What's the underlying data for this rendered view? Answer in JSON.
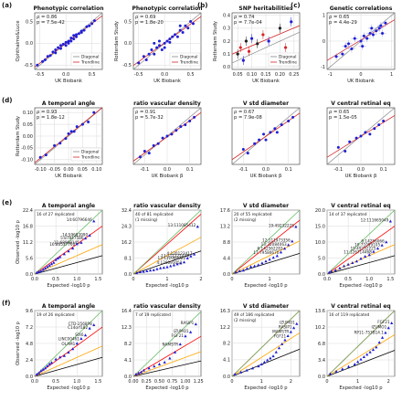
{
  "panels": [
    {
      "id": "a",
      "title": "Phenotypic correlation",
      "ylabel": "Ophthalmo&Luce",
      "xlabel": "UK Biobank",
      "legend": []
    },
    {
      "id": "a2",
      "title": "Phenotypic correlation",
      "ylabel": "Rotterdam Study",
      "xlabel": "UK Biobank",
      "legend": []
    },
    {
      "id": "b",
      "title": "SNP heritabilities",
      "ylabel": "Rotterdam Study",
      "xlabel": "UK Biobank",
      "legend": [
        "Diagonal",
        "Trendline"
      ]
    },
    {
      "id": "c",
      "title": "Genetic correlations",
      "ylabel": "",
      "xlabel": "UK Biobank",
      "legend": []
    }
  ],
  "chart_data": [
    {
      "type": "scatter",
      "panel": "a",
      "title": "Phenotypic correlation",
      "stats": [
        "ρ = 0.86",
        "p = 7.5e-42"
      ],
      "xlabel": "UK Biobank",
      "ylabel": "Ophthalmo&Luce",
      "xlim": [
        -0.6,
        0.7
      ],
      "ylim": [
        -0.6,
        0.7
      ],
      "xticks": [
        "-0.5",
        "0.0",
        "0.5"
      ],
      "yticks": [
        "-0.5",
        "0.0",
        "0.5"
      ],
      "legend": [
        "Diagonal",
        "Trendline"
      ],
      "x": [
        -0.55,
        -0.45,
        -0.4,
        -0.35,
        -0.3,
        -0.25,
        -0.2,
        -0.15,
        -0.1,
        -0.05,
        0.0,
        0.05,
        0.1,
        0.15,
        0.2,
        0.25,
        0.3,
        0.35,
        0.4,
        0.45,
        0.5,
        0.55,
        -0.1,
        0.0,
        0.1,
        0.2,
        0.3,
        -0.2,
        0.05,
        0.15
      ],
      "y": [
        -0.5,
        -0.42,
        -0.38,
        -0.3,
        -0.28,
        -0.2,
        -0.22,
        -0.1,
        -0.12,
        -0.02,
        0.02,
        0.05,
        0.12,
        0.1,
        0.2,
        0.22,
        0.28,
        0.3,
        0.38,
        0.4,
        0.45,
        0.52,
        -0.05,
        -0.05,
        0.05,
        0.15,
        0.25,
        -0.15,
        0.0,
        0.18
      ]
    },
    {
      "type": "scatter",
      "panel": "a2",
      "title": "Phenotypic correlation",
      "stats": [
        "ρ = 0.69",
        "p = 1.8e-20"
      ],
      "xlabel": "UK Biobank",
      "ylabel": "Rotterdam Study",
      "xlim": [
        -0.6,
        0.7
      ],
      "ylim": [
        -0.6,
        0.7
      ],
      "xticks": [
        "-0.5",
        "0.0",
        "0.5"
      ],
      "yticks": [
        "-0.5",
        "0.0",
        "0.5"
      ],
      "legend": [
        "Diagonal",
        "Trendline"
      ],
      "x": [
        -0.5,
        -0.4,
        -0.35,
        -0.3,
        -0.25,
        -0.2,
        -0.15,
        -0.1,
        -0.05,
        0.0,
        0.05,
        0.1,
        0.15,
        0.2,
        0.25,
        0.3,
        0.35,
        0.4,
        0.45,
        0.5,
        0.55,
        -0.2,
        0.0,
        0.1,
        0.3,
        -0.1
      ],
      "y": [
        -0.45,
        -0.3,
        -0.38,
        -0.25,
        -0.15,
        -0.25,
        -0.1,
        -0.05,
        -0.15,
        0.0,
        0.05,
        0.02,
        0.15,
        0.2,
        0.15,
        0.3,
        0.25,
        0.4,
        0.35,
        0.5,
        0.45,
        0.0,
        -0.1,
        0.1,
        0.4,
        0.05
      ]
    },
    {
      "type": "scatter",
      "panel": "b",
      "title": "SNP heritabilities",
      "stats": [
        "ρ = 0.74",
        "p = 7.7e-04"
      ],
      "xlabel": "UK Biobank",
      "ylabel": "Rotterdam Study",
      "xlim": [
        0.03,
        0.27
      ],
      "ylim": [
        -0.02,
        0.42
      ],
      "xticks": [
        "0.05",
        "0.10",
        "0.15",
        "0.20",
        "0.25"
      ],
      "yticks": [
        "0.0",
        "0.1",
        "0.2",
        "0.3",
        "0.4"
      ],
      "legend": [
        "Diagonal",
        "Trendline"
      ],
      "x": [
        0.05,
        0.06,
        0.07,
        0.08,
        0.09,
        0.1,
        0.12,
        0.14,
        0.16,
        0.2,
        0.22,
        0.24
      ],
      "y": [
        0.1,
        0.15,
        0.05,
        0.2,
        0.12,
        0.22,
        0.18,
        0.25,
        0.2,
        0.3,
        0.15,
        0.35
      ]
    },
    {
      "type": "scatter",
      "panel": "c",
      "title": "Genetic correlations",
      "stats": [
        "ρ = 0.65",
        "p = 4.4e-29"
      ],
      "xlabel": "UK Biobank",
      "ylabel": "",
      "xlim": [
        -1.1,
        1.1
      ],
      "ylim": [
        -1.1,
        1.1
      ],
      "xticks": [
        "-1",
        "0",
        "1"
      ],
      "yticks": [
        "-1",
        "0",
        "1"
      ],
      "legend": [],
      "x": [
        -0.8,
        -0.6,
        -0.5,
        -0.3,
        -0.2,
        0.0,
        0.1,
        0.2,
        0.3,
        0.4,
        0.5,
        0.6,
        0.7,
        0.8,
        -0.4,
        0.05,
        0.35,
        0.65
      ],
      "y": [
        -0.6,
        -0.5,
        -0.2,
        -0.3,
        0.1,
        0.0,
        0.2,
        0.1,
        0.3,
        0.25,
        0.4,
        0.5,
        0.3,
        0.7,
        -0.1,
        -0.2,
        0.5,
        0.6
      ]
    },
    {
      "type": "scatter",
      "panel": "d",
      "title": "A temporal angle",
      "stats": [
        "ρ = 0.93",
        "p = 1.8e-12"
      ],
      "xlabel": "UK Biobank",
      "ylabel": "Rotterdam Study",
      "xlim": [
        -0.12,
        0.12
      ],
      "ylim": [
        -0.12,
        0.12
      ],
      "xticks": [
        "-0.10",
        "-0.05",
        "0.00",
        "0.05",
        "0.10"
      ],
      "yticks": [
        "-0.10",
        "-0.05",
        "0.00",
        "0.05",
        "0.10"
      ],
      "legend": [
        "Diagonal",
        "Trendline"
      ],
      "x": [
        -0.1,
        -0.08,
        -0.05,
        -0.03,
        -0.01,
        0.0,
        0.01,
        0.02,
        0.03,
        0.05,
        0.07,
        0.09
      ],
      "y": [
        -0.09,
        -0.08,
        -0.04,
        -0.03,
        -0.01,
        0.01,
        0.02,
        0.02,
        0.04,
        0.05,
        0.06,
        0.1
      ]
    },
    {
      "type": "scatter",
      "panel": "d2",
      "title": "ratio vascular density",
      "stats": [
        "ρ = 0.91",
        "p = 5.7e-32"
      ],
      "xlabel": "UK Biobank β",
      "ylabel": "",
      "xlim": [
        -0.15,
        0.15
      ],
      "ylim": [
        -0.15,
        0.15
      ],
      "xticks": [
        "-0.1",
        "0.0",
        "0.1"
      ],
      "yticks": [],
      "legend": [],
      "x": [
        -0.12,
        -0.1,
        -0.08,
        -0.06,
        -0.04,
        -0.02,
        0.0,
        0.02,
        0.04,
        0.06,
        0.08,
        0.1,
        0.12
      ],
      "y": [
        -0.11,
        -0.08,
        -0.09,
        -0.05,
        -0.04,
        -0.01,
        0.0,
        0.01,
        0.03,
        0.05,
        0.06,
        0.08,
        0.1
      ]
    },
    {
      "type": "scatter",
      "panel": "d3",
      "title": "V std diameter",
      "stats": [
        "ρ = 0.67",
        "p = 7.9e-08"
      ],
      "xlabel": "UK Biobank β",
      "ylabel": "",
      "xlim": [
        -0.15,
        0.15
      ],
      "ylim": [
        -0.15,
        0.15
      ],
      "xticks": [
        "-0.1",
        "0.0",
        "0.1"
      ],
      "yticks": [],
      "legend": [],
      "x": [
        -0.1,
        -0.08,
        -0.05,
        -0.03,
        -0.01,
        0.0,
        0.02,
        0.04,
        0.05,
        0.07,
        0.1,
        0.12
      ],
      "y": [
        -0.07,
        -0.09,
        -0.04,
        -0.02,
        0.01,
        -0.02,
        0.02,
        0.04,
        0.02,
        0.06,
        0.08,
        0.1
      ]
    },
    {
      "type": "scatter",
      "panel": "d4",
      "title": "V central retinal eq",
      "stats": [
        "ρ = 0.65",
        "p = 1.5e-05"
      ],
      "xlabel": "UK Biobank β",
      "ylabel": "",
      "xlim": [
        -0.15,
        0.15
      ],
      "ylim": [
        -0.15,
        0.15
      ],
      "xticks": [
        "-0.1",
        "0.0",
        "0.1"
      ],
      "yticks": [],
      "legend": [],
      "x": [
        -0.1,
        -0.07,
        -0.05,
        -0.02,
        0.0,
        0.02,
        0.04,
        0.06,
        0.08,
        0.1
      ],
      "y": [
        -0.06,
        -0.08,
        -0.03,
        -0.01,
        0.0,
        0.02,
        0.01,
        0.04,
        0.06,
        0.08
      ]
    },
    {
      "type": "scatter",
      "panel": "e",
      "title": "A temporal angle",
      "stats": [
        "16 of 27 replicated"
      ],
      "xlabel": "Expected -log10 p",
      "ylabel": "Observed -log10 p",
      "xlim": [
        0,
        1.6
      ],
      "ylim": [
        0,
        22.4
      ],
      "xticks": [
        "0.0",
        "0.5",
        "1.0",
        "1.5"
      ],
      "yticks": [
        "0.0",
        "5.6",
        "11.2",
        "16.8",
        "22.4"
      ],
      "legend": [],
      "annotations": [
        "14:60796646",
        "14:59683990",
        "5:87847586",
        "11:68968145",
        "16:80537760"
      ],
      "x": [
        0.05,
        0.1,
        0.15,
        0.2,
        0.25,
        0.3,
        0.35,
        0.4,
        0.45,
        0.5,
        0.55,
        0.6,
        0.7,
        0.8,
        0.9,
        1.0,
        1.1,
        1.2,
        1.3,
        1.4
      ],
      "y": [
        0.5,
        0.8,
        1.0,
        1.5,
        2.0,
        2.5,
        3.0,
        3.5,
        4.0,
        5.0,
        5.5,
        6.0,
        7.0,
        8.0,
        9.0,
        10.5,
        11.0,
        12.5,
        13.5,
        18.5
      ]
    },
    {
      "type": "scatter",
      "panel": "e2",
      "title": "ratio vascular density",
      "stats": [
        "40 of 81 replicated",
        "(1 missing)"
      ],
      "xlabel": "Expected -log10 p",
      "ylabel": "",
      "xlim": [
        0,
        2.0
      ],
      "ylim": [
        0,
        32.4
      ],
      "xticks": [
        "0",
        "1",
        "2"
      ],
      "yticks": [
        "0.0",
        "8.1",
        "16.2",
        "24.3",
        "32.4"
      ],
      "legend": [],
      "annotations": [
        "13:111085412",
        "4:120123417",
        "13:111121444",
        "13:111060922",
        "4:120093052"
      ],
      "x": [
        0.1,
        0.2,
        0.3,
        0.4,
        0.5,
        0.6,
        0.7,
        0.8,
        0.9,
        1.0,
        1.1,
        1.2,
        1.3,
        1.4,
        1.5,
        1.6,
        1.7,
        1.8,
        1.9
      ],
      "y": [
        0.5,
        1.0,
        1.2,
        1.5,
        1.8,
        2.0,
        2.5,
        3.0,
        3.2,
        3.5,
        4.0,
        4.5,
        5.0,
        5.5,
        6.0,
        8.0,
        9.0,
        10.0,
        24.0
      ]
    },
    {
      "type": "scatter",
      "panel": "e3",
      "title": "V std diameter",
      "stats": [
        "20 of 55 replicated",
        "(2 missing)"
      ],
      "xlabel": "Expected -log10 p",
      "ylabel": "",
      "xlim": [
        0,
        1.8
      ],
      "ylim": [
        0,
        17.6
      ],
      "xticks": [
        "0",
        "1"
      ],
      "yticks": [
        "0.0",
        "4.4",
        "8.8",
        "13.2",
        "17.6"
      ],
      "legend": [],
      "annotations": [
        "19:49232225",
        "12:111973356",
        "13:22084063",
        "6:142562283",
        "17:79584670"
      ],
      "x": [
        0.1,
        0.2,
        0.3,
        0.4,
        0.5,
        0.6,
        0.7,
        0.8,
        0.9,
        1.0,
        1.1,
        1.2,
        1.3,
        1.4,
        1.5,
        1.6,
        1.7
      ],
      "y": [
        0.5,
        0.8,
        1.0,
        1.5,
        2.0,
        2.2,
        2.5,
        3.0,
        3.5,
        4.0,
        4.5,
        5.0,
        6.0,
        7.0,
        8.0,
        9.0,
        13.0
      ]
    },
    {
      "type": "scatter",
      "panel": "e4",
      "title": "V central retinal eq",
      "stats": [
        "14 of 37 replicated"
      ],
      "xlabel": "Expected -log10 p",
      "ylabel": "",
      "xlim": [
        0,
        1.6
      ],
      "ylim": [
        0,
        20.0
      ],
      "xticks": [
        "0.0",
        "0.5",
        "1.0",
        "1.5"
      ],
      "yticks": [
        "0.0",
        "5.0",
        "10.0",
        "15.0",
        "20.0"
      ],
      "legend": [],
      "annotations": [
        "12:111665049",
        "6:14256066",
        "10:71099105",
        "19:49232225",
        "11:126714468"
      ],
      "x": [
        0.05,
        0.1,
        0.2,
        0.3,
        0.4,
        0.5,
        0.6,
        0.7,
        0.8,
        0.9,
        1.0,
        1.1,
        1.2,
        1.3,
        1.4,
        1.5
      ],
      "y": [
        0.5,
        0.8,
        1.2,
        1.8,
        2.5,
        3.0,
        3.5,
        4.0,
        4.8,
        5.5,
        6.0,
        7.0,
        8.0,
        9.0,
        10.0,
        16.5
      ]
    },
    {
      "type": "scatter",
      "panel": "f",
      "title": "A temporal angle",
      "stats": [
        "19 of 26 replicated"
      ],
      "xlabel": "Expected -log10 p",
      "ylabel": "Observed -log10 p",
      "xlim": [
        0,
        1.6
      ],
      "ylim": [
        0,
        9.6
      ],
      "xticks": [
        "0.0",
        "0.5",
        "1.0",
        "1.5"
      ],
      "yticks": [
        "0.0",
        "2.4",
        "4.8",
        "7.2",
        "9.6"
      ],
      "legend": [],
      "annotations": [
        "CTD-2568P8",
        "C14orf182",
        "SIX6",
        "LINC00461",
        "OLAM1"
      ],
      "x": [
        0.05,
        0.1,
        0.15,
        0.2,
        0.25,
        0.3,
        0.35,
        0.4,
        0.5,
        0.6,
        0.7,
        0.8,
        0.9,
        1.0,
        1.1,
        1.2,
        1.3,
        1.4
      ],
      "y": [
        0.3,
        0.5,
        0.8,
        1.0,
        1.2,
        1.5,
        1.8,
        2.0,
        2.5,
        2.8,
        3.0,
        3.5,
        4.0,
        4.8,
        5.5,
        6.0,
        7.0,
        7.5
      ]
    },
    {
      "type": "scatter",
      "panel": "f2",
      "title": "ratio vascular density",
      "stats": [
        "7 of 19 replicated"
      ],
      "xlabel": "Expected -log10 p",
      "ylabel": "",
      "xlim": [
        0,
        1.3
      ],
      "ylim": [
        0,
        16.4
      ],
      "xticks": [
        "0.00",
        "0.25",
        "0.50",
        "0.75",
        "1.00",
        "1.25"
      ],
      "yticks": [
        "0.0",
        "4.1",
        "8.2",
        "12.3",
        "16.4"
      ],
      "legend": [],
      "annotations": [
        "RASIP1",
        "IZUMO1",
        "FGF21",
        "NAMSTR"
      ],
      "x": [
        0.05,
        0.1,
        0.15,
        0.2,
        0.3,
        0.4,
        0.5,
        0.6,
        0.7,
        0.8,
        0.9,
        1.0,
        1.1,
        1.2
      ],
      "y": [
        0.5,
        0.8,
        1.0,
        1.5,
        2.0,
        2.5,
        3.0,
        3.5,
        4.5,
        6.0,
        8.0,
        10.0,
        11.0,
        13.0
      ]
    },
    {
      "type": "scatter",
      "panel": "f3",
      "title": "V std diameter",
      "stats": [
        "49 of 186 replicated",
        "(2 missing)"
      ],
      "xlabel": "Expected -log10 p",
      "ylabel": "",
      "xlim": [
        0,
        2.3
      ],
      "ylim": [
        0,
        16.3
      ],
      "xticks": [
        "0",
        "1",
        "2"
      ],
      "yticks": [
        "0.0",
        "4.1",
        "8.2",
        "12.2",
        "16.3"
      ],
      "legend": [],
      "annotations": [
        "IZUMO1",
        "RASIP1",
        "MAMSTR",
        "FGF21"
      ],
      "x": [
        0.1,
        0.3,
        0.5,
        0.7,
        0.9,
        1.0,
        1.1,
        1.2,
        1.3,
        1.4,
        1.5,
        1.6,
        1.7,
        1.8,
        1.9,
        2.0,
        2.1,
        2.2
      ],
      "y": [
        0.5,
        1.0,
        1.5,
        2.0,
        2.5,
        3.0,
        3.5,
        4.0,
        4.5,
        5.0,
        6.0,
        7.0,
        8.0,
        9.0,
        10.0,
        11.0,
        12.0,
        13.0
      ]
    },
    {
      "type": "scatter",
      "panel": "f4",
      "title": "V central retinal eq",
      "stats": [
        "16 of 119 replicated"
      ],
      "xlabel": "Expected -log10 p",
      "ylabel": "",
      "xlim": [
        0,
        2.2
      ],
      "ylim": [
        0,
        13.6
      ],
      "xticks": [
        "0",
        "1",
        "2"
      ],
      "yticks": [
        "0.0",
        "3.4",
        "6.8",
        "10.2",
        "13.6"
      ],
      "legend": [],
      "annotations": [
        "FGF21",
        "IZUMO1",
        "RP11-753B14.1"
      ],
      "x": [
        0.1,
        0.3,
        0.5,
        0.7,
        0.9,
        1.0,
        1.1,
        1.2,
        1.3,
        1.4,
        1.5,
        1.6,
        1.7,
        1.8,
        1.9,
        2.0,
        2.1
      ],
      "y": [
        0.5,
        1.0,
        1.5,
        2.0,
        2.5,
        3.0,
        3.5,
        4.0,
        4.5,
        5.0,
        5.5,
        6.0,
        7.0,
        8.0,
        9.0,
        10.0,
        11.0
      ]
    }
  ],
  "panel_letters": [
    "(a)",
    "(b)",
    "(c)",
    "(d)",
    "(e)",
    "(f)"
  ],
  "colors": {
    "points": "#1f1fd6",
    "diagonal": "#888888",
    "trend": "#d62728",
    "grid": "#d9d9d9",
    "qq1": "#000000",
    "qq2": "#ffa500",
    "qq3": "#ff0000",
    "qq4": "#66bb66",
    "tri": "#1f1fd6",
    "green": "#2ca02c"
  }
}
